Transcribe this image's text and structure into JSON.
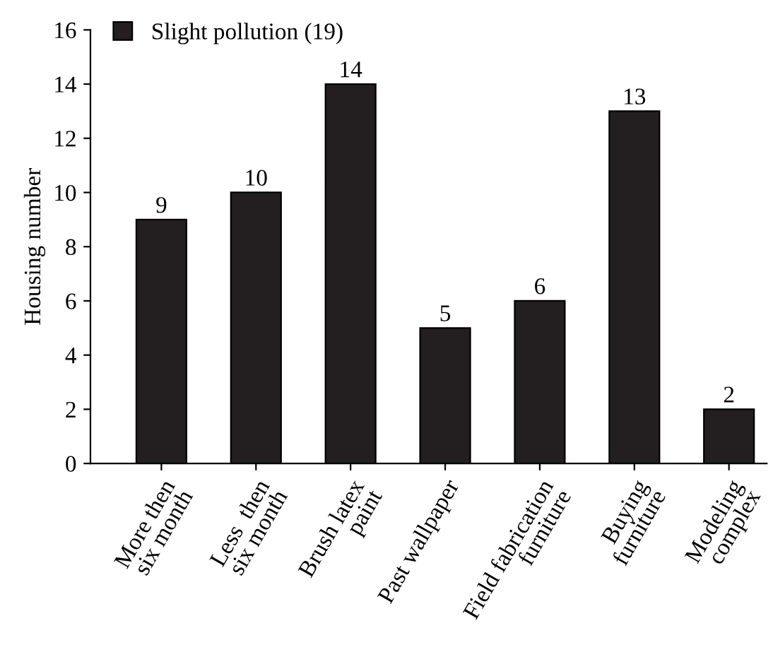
{
  "chart_data": {
    "type": "bar",
    "ylabel": "Housing number",
    "categories": [
      "More then\nsix month",
      "Less  then\nsix month",
      "Brush latex\npaint",
      "Past wallpaper",
      "Field fabrication\nfurniture",
      "Buying\nfurniture",
      "Modeling\ncomplex"
    ],
    "series": [
      {
        "name": "Slight pollution (19)",
        "color": "#231f20",
        "values": [
          9,
          10,
          14,
          5,
          6,
          13,
          2
        ]
      }
    ],
    "ylim": [
      0,
      16
    ],
    "yticks": [
      0,
      2,
      4,
      6,
      8,
      10,
      12,
      14,
      16
    ],
    "data_labels": true,
    "legend": "top left",
    "grid": false
  }
}
